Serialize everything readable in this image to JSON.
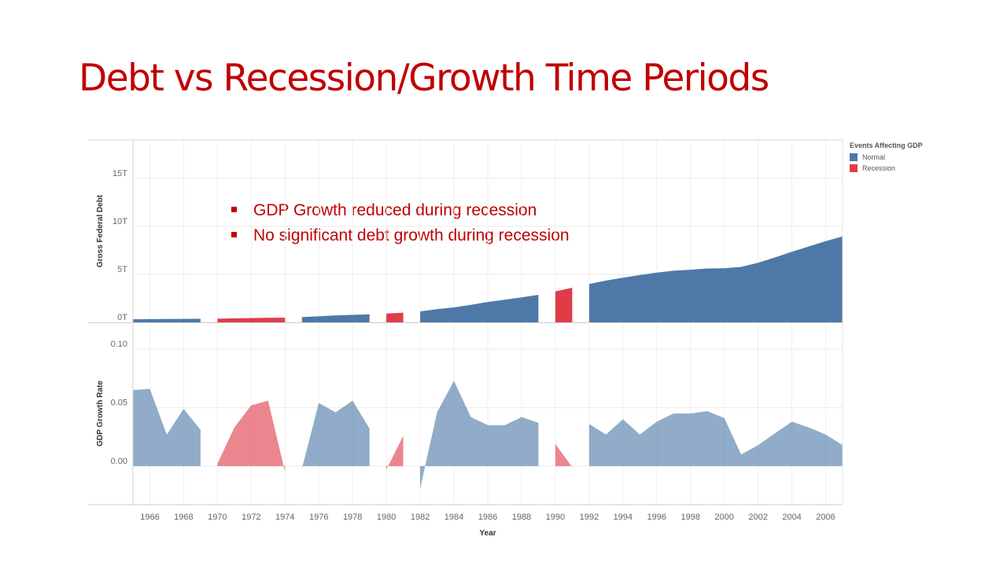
{
  "slide": {
    "title": "Debt vs Recession/Growth Time Periods",
    "bullets": [
      "GDP Growth  reduced during  recession",
      "No significant debt growth during recession"
    ]
  },
  "chart_data": {
    "type": "area",
    "xlabel": "Year",
    "legend": {
      "title": "Events Affecting GDP",
      "placement": "top-right",
      "items": [
        {
          "label": "Normal",
          "color": "#4e79a7"
        },
        {
          "label": "Recession",
          "color": "#e03c48"
        }
      ]
    },
    "x_ticks": [
      1966,
      1968,
      1970,
      1972,
      1974,
      1976,
      1978,
      1980,
      1982,
      1984,
      1986,
      1988,
      1990,
      1992,
      1994,
      1996,
      1998,
      2000,
      2002,
      2004,
      2006
    ],
    "xlim": [
      1965,
      2007
    ],
    "panels": [
      {
        "ylabel": "Gross Federal Debt",
        "ylim": [
          0,
          19
        ],
        "yticks": [
          0,
          5,
          10,
          15
        ],
        "ytick_labels": [
          "0T",
          "5T",
          "10T",
          "15T"
        ],
        "grid": true,
        "series": [
          {
            "category": "Normal",
            "x": [
              1965,
              1966,
              1967,
              1968,
              1969
            ],
            "values": [
              0.32,
              0.33,
              0.34,
              0.36,
              0.37
            ]
          },
          {
            "category": "Recession",
            "x": [
              1970,
              1971,
              1972,
              1973,
              1974
            ],
            "values": [
              0.38,
              0.41,
              0.44,
              0.47,
              0.48
            ]
          },
          {
            "category": "Normal",
            "x": [
              1975,
              1976,
              1977,
              1978,
              1979
            ],
            "values": [
              0.54,
              0.62,
              0.71,
              0.78,
              0.83
            ]
          },
          {
            "category": "Recession",
            "x": [
              1980,
              1981
            ],
            "values": [
              0.91,
              1.0
            ]
          },
          {
            "category": "Normal",
            "x": [
              1982,
              1983,
              1984,
              1985,
              1986,
              1987,
              1988,
              1989
            ],
            "values": [
              1.14,
              1.37,
              1.56,
              1.82,
              2.12,
              2.35,
              2.6,
              2.87
            ]
          },
          {
            "category": "Recession",
            "x": [
              1990,
              1991
            ],
            "values": [
              3.21,
              3.6
            ]
          },
          {
            "category": "Normal",
            "x": [
              1992,
              1993,
              1994,
              1995,
              1996,
              1997,
              1998,
              1999,
              2000,
              2001,
              2002,
              2003,
              2004,
              2005,
              2006,
              2007
            ],
            "values": [
              4.0,
              4.35,
              4.64,
              4.92,
              5.18,
              5.37,
              5.48,
              5.61,
              5.63,
              5.77,
              6.2,
              6.76,
              7.35,
              7.9,
              8.45,
              8.95
            ]
          }
        ]
      },
      {
        "ylabel": "GDP Growth Rate",
        "ylim": [
          -0.033,
          0.123
        ],
        "yticks": [
          0,
          0.05,
          0.1
        ],
        "ytick_labels": [
          "0.00",
          "0.05",
          "0.10"
        ],
        "grid": true,
        "series": [
          {
            "category": "Normal",
            "x": [
              1965,
              1966,
              1967,
              1968,
              1969
            ],
            "values": [
              0.065,
              0.066,
              0.027,
              0.049,
              0.031
            ]
          },
          {
            "category": "Recession",
            "x": [
              1970,
              1971,
              1972,
              1973,
              1974
            ],
            "values": [
              0.002,
              0.033,
              0.052,
              0.056,
              -0.005
            ]
          },
          {
            "category": "Normal",
            "x": [
              1975,
              1976,
              1977,
              1978,
              1979
            ],
            "values": [
              -0.002,
              0.054,
              0.046,
              0.056,
              0.032
            ]
          },
          {
            "category": "Recession",
            "x": [
              1980,
              1981
            ],
            "values": [
              -0.003,
              0.026
            ]
          },
          {
            "category": "Normal",
            "x": [
              1982,
              1983,
              1984,
              1985,
              1986,
              1987,
              1988,
              1989
            ],
            "values": [
              -0.019,
              0.046,
              0.073,
              0.042,
              0.035,
              0.035,
              0.042,
              0.037
            ]
          },
          {
            "category": "Recession",
            "x": [
              1990,
              1991
            ],
            "values": [
              0.019,
              -0.001
            ]
          },
          {
            "category": "Normal",
            "x": [
              1992,
              1993,
              1994,
              1995,
              1996,
              1997,
              1998,
              1999,
              2000,
              2001,
              2002,
              2003,
              2004,
              2005,
              2006,
              2007
            ],
            "values": [
              0.036,
              0.027,
              0.04,
              0.027,
              0.038,
              0.045,
              0.045,
              0.047,
              0.041,
              0.01,
              0.018,
              0.028,
              0.038,
              0.033,
              0.027,
              0.018
            ]
          }
        ]
      }
    ]
  }
}
